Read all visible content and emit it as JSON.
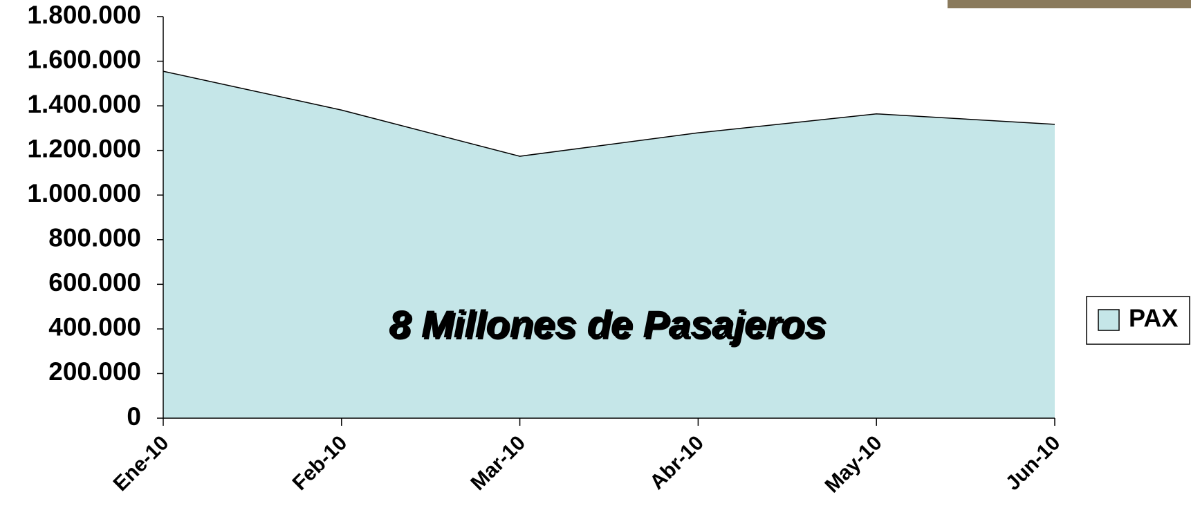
{
  "chart_data": {
    "type": "area",
    "categories": [
      "Ene-10",
      "Feb-10",
      "Mar-10",
      "Abr-10",
      "May-10",
      "Jun-10"
    ],
    "series": [
      {
        "name": "PAX",
        "color": "#c5e6e8",
        "values": [
          1555000,
          1381000,
          1174000,
          1279000,
          1364000,
          1317000
        ]
      }
    ],
    "annotation": "8 Millones de Pasajeros",
    "ylim": [
      0,
      1800000
    ],
    "yticks": [
      0,
      {
        "value": 200000,
        "label": "200.000"
      },
      {
        "value": 400000,
        "label": "400.000"
      },
      {
        "value": 600000,
        "label": "600.000"
      },
      {
        "value": 800000,
        "label": "800.000"
      },
      {
        "value": 1000000,
        "label": "1.000.000"
      },
      {
        "value": 1200000,
        "label": "1.200.000"
      },
      {
        "value": 1400000,
        "label": "1.400.000"
      },
      {
        "value": 1600000,
        "label": "1.600.000"
      },
      {
        "value": 1800000,
        "label": "1.800.000"
      }
    ],
    "grid": false,
    "legend": "right"
  }
}
